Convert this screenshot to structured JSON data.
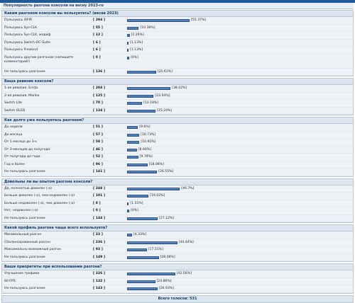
{
  "page": {
    "title": "Популярность разгона консоли на весну 2023-го",
    "total_label": "Всего голосов: 531",
    "bar_color": "#3a68a6"
  },
  "questions": [
    {
      "question": "Каким разгоном консоли вы пользуетесь? (весна 2023)",
      "options": [
        {
          "label": "Пользуюсь 4IFIR",
          "count": "294",
          "percent": 55.37,
          "pct_text": "[55.37%]"
        },
        {
          "label": "Пользуюсь Sys-CLK",
          "count": "55",
          "percent": 10.36,
          "pct_text": "[10.36%]"
        },
        {
          "label": "Пользуюсь Sys-CLK, модиф.",
          "count": "12",
          "percent": 2.26,
          "pct_text": "[2.26%]"
        },
        {
          "label": "Пользуюсь Switch-OC-Suite",
          "count": "6",
          "percent": 1.13,
          "pct_text": "[1.13%]"
        },
        {
          "label": "Пользуюсь Freakind",
          "count": "6",
          "percent": 1.13,
          "pct_text": "[1.13%]"
        },
        {
          "label": "Пользуюсь другим разгоном (напишите комментарий!)",
          "count": "0",
          "percent": 0,
          "pct_text": "[0%]",
          "tall": true
        },
        {
          "label": "Не пользуюсь разгоном",
          "count": "136",
          "percent": 25.61,
          "pct_text": "[25.61%]"
        }
      ]
    },
    {
      "question": "Ваша ревизия консоли?",
      "options": [
        {
          "label": "1-ая ревизия, Erista",
          "count": "204",
          "percent": 38.42,
          "pct_text": "[38.42%]"
        },
        {
          "label": "2-ая ревизия, Mariko",
          "count": "125",
          "percent": 23.54,
          "pct_text": "[23.54%]"
        },
        {
          "label": "Switch Lite",
          "count": "70",
          "percent": 13.18,
          "pct_text": "[13.18%]"
        },
        {
          "label": "Switch OLED",
          "count": "134",
          "percent": 25.24,
          "pct_text": "[25.24%]"
        }
      ]
    },
    {
      "question": "Как долго уже пользуетесь разгоном?",
      "options": [
        {
          "label": "До недели",
          "count": "51",
          "percent": 9.6,
          "pct_text": "[9.6%]"
        },
        {
          "label": "До месяца",
          "count": "57",
          "percent": 10.73,
          "pct_text": "[10.73%]"
        },
        {
          "label": "От 1 месяца до 3-х",
          "count": "58",
          "percent": 10.92,
          "pct_text": "[10.92%]"
        },
        {
          "label": "От 3-месяцев до полугода",
          "count": "46",
          "percent": 8.66,
          "pct_text": "[8.66%]"
        },
        {
          "label": "От полугода до года",
          "count": "52",
          "percent": 9.79,
          "pct_text": "[9.79%]"
        },
        {
          "label": "Год и более",
          "count": "96",
          "percent": 18.08,
          "pct_text": "[18.08%]"
        },
        {
          "label": "Не пользуюсь разгоном",
          "count": "141",
          "percent": 26.55,
          "pct_text": "[26.55%]"
        }
      ]
    },
    {
      "question": "Довольны ли вы опытом разгона консоли?",
      "options": [
        {
          "label": "Да, полностью доволен (-а)",
          "count": "248",
          "percent": 46.7,
          "pct_text": "[46.7%]"
        },
        {
          "label": "Больше доволен (-а), чем недоволен (-а)",
          "count": "101",
          "percent": 19.02,
          "pct_text": "[19.02%]"
        },
        {
          "label": "Больше недоволен (-а), чем доволен (-а)",
          "count": "8",
          "percent": 1.51,
          "pct_text": "[1.51%]"
        },
        {
          "label": "Нет, недоволен (-а)",
          "count": "0",
          "percent": 0,
          "pct_text": "[0%]"
        },
        {
          "label": "Не пользуюсь разгоном",
          "count": "144",
          "percent": 27.12,
          "pct_text": "[27.12%]"
        }
      ]
    },
    {
      "question": "Какой профиль разгона чаще всего используете?",
      "options": [
        {
          "label": "Минимальный разгон",
          "count": "23",
          "percent": 4.33,
          "pct_text": "[4.33%]"
        },
        {
          "label": "Сбалансированный разгон",
          "count": "236",
          "percent": 44.44,
          "pct_text": "[44.44%]"
        },
        {
          "label": "Максимально возможный разгон",
          "count": "93",
          "percent": 17.51,
          "pct_text": "[17.51%]"
        },
        {
          "label": "Не пользуюсь разгоном",
          "count": "149",
          "percent": 28.06,
          "pct_text": "[28.06%]"
        }
      ]
    },
    {
      "question": "Ваши приоритеты при использовании разгона?",
      "options": [
        {
          "label": "Улучшение графики",
          "count": "226",
          "percent": 42.56,
          "pct_text": "[42.56%]"
        },
        {
          "label": "60 FPS",
          "count": "132",
          "percent": 24.86,
          "pct_text": "[24.86%]"
        },
        {
          "label": "Не пользуюсь разгоном",
          "count": "143",
          "percent": 26.93,
          "pct_text": "[26.93%]"
        }
      ]
    }
  ]
}
